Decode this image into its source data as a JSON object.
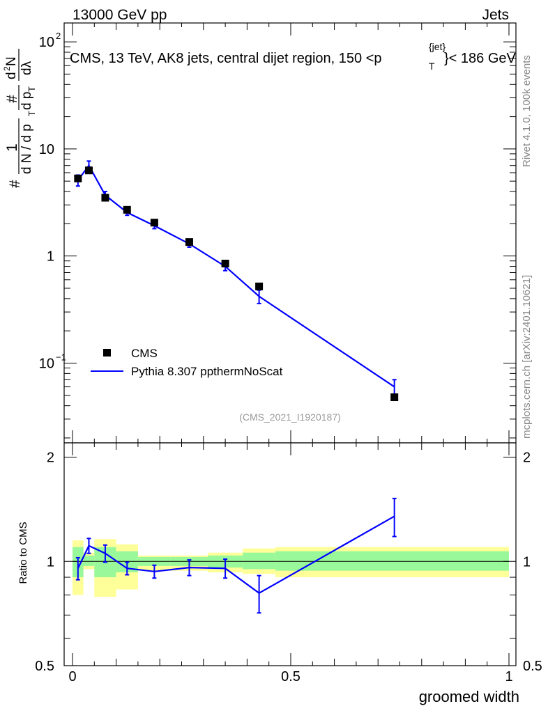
{
  "header": {
    "left": "13000 GeV pp",
    "right": "Jets"
  },
  "chart_data": {
    "type": "line",
    "title": "CMS, 13 TeV, AK8 jets, central dijet region, 150 <p",
    "title_sub": "T",
    "title_sup": "{jet}",
    "title_tail": "}< 186 GeV",
    "ylabel_top": "#  1 / dN/dp_T  # d²N / dp_T dλ",
    "y_prefix": "#",
    "y_frac_num": "1",
    "y_frac_den": "d N / d p",
    "y_frac_den_sub": "T",
    "y_frac2_num": "#",
    "y_frac2_den": "d p",
    "y_frac2_den_sub": "T",
    "y_frac3_num": "d",
    "y_frac3_num_sup": "2",
    "y_frac3_num_tail": "N",
    "y_frac3_den": "dλ",
    "xlabel": "groomed width",
    "ylabel_ratio": "Ratio to CMS",
    "analysis_tag": "(CMS_2021_I1920187)",
    "side_label_top": "Rivet 4.1.0,  100k events",
    "side_label_bottom": "mcplots.cern.ch [arXiv:2401.10621]",
    "legend": [
      {
        "label": "CMS",
        "style": "marker",
        "color": "#000000"
      },
      {
        "label": "Pythia 8.307 ppthermNoScat",
        "style": "line",
        "color": "#0000ff"
      }
    ],
    "xlim": [
      0,
      1
    ],
    "ylim_main": [
      0.018,
      150
    ],
    "ylim_ratio": [
      0.5,
      2.2
    ],
    "x_ticks": [
      {
        "value": 0,
        "label": "0"
      },
      {
        "value": 0.5,
        "label": "0.5"
      },
      {
        "value": 1,
        "label": "1"
      }
    ],
    "y_ticks_main": [
      {
        "value": 0.1,
        "base": "10",
        "exp": "−1"
      },
      {
        "value": 1,
        "base": "1",
        "exp": ""
      },
      {
        "value": 10,
        "base": "10",
        "exp": ""
      },
      {
        "value": 100,
        "base": "10",
        "exp": "2"
      }
    ],
    "y_ticks_ratio": [
      {
        "value": 0.5,
        "label": "0.5"
      },
      {
        "value": 1,
        "label": "1"
      },
      {
        "value": 2,
        "label": "2"
      }
    ],
    "cms": {
      "x": [
        0.0125,
        0.0375,
        0.075,
        0.125,
        0.1875,
        0.2675,
        0.35,
        0.4275,
        0.7375
      ],
      "y": [
        5.3,
        6.3,
        3.5,
        2.7,
        2.05,
        1.35,
        0.85,
        0.52,
        0.048
      ]
    },
    "pythia": {
      "x": [
        0.0125,
        0.0375,
        0.075,
        0.125,
        0.1875,
        0.2675,
        0.35,
        0.4275,
        0.7375
      ],
      "y": [
        5.1,
        7.0,
        3.7,
        2.55,
        1.92,
        1.3,
        0.8,
        0.42,
        0.06
      ],
      "yerr": [
        0.6,
        0.7,
        0.3,
        0.15,
        0.12,
        0.09,
        0.07,
        0.06,
        0.01
      ]
    },
    "ratio": {
      "x": [
        0.0125,
        0.0375,
        0.075,
        0.125,
        0.1875,
        0.2675,
        0.35,
        0.4275,
        0.7375
      ],
      "y": [
        0.955,
        1.11,
        1.055,
        0.955,
        0.935,
        0.96,
        0.955,
        0.81,
        1.35
      ],
      "yerr": [
        0.07,
        0.055,
        0.06,
        0.04,
        0.04,
        0.05,
        0.06,
        0.1,
        0.17
      ]
    },
    "bands": {
      "bin_edges": [
        0,
        0.025,
        0.05,
        0.1,
        0.15,
        0.225,
        0.31,
        0.39,
        0.465,
        1.0
      ],
      "inner_lo": [
        0.9,
        0.97,
        0.9,
        0.93,
        0.97,
        0.97,
        0.96,
        0.95,
        0.94
      ],
      "inner_hi": [
        1.1,
        1.04,
        1.1,
        1.07,
        1.03,
        1.03,
        1.04,
        1.06,
        1.07
      ],
      "outer_lo": [
        0.8,
        0.95,
        0.79,
        0.83,
        0.94,
        0.94,
        0.93,
        0.92,
        0.9
      ],
      "outer_hi": [
        1.15,
        1.06,
        1.16,
        1.12,
        1.04,
        1.04,
        1.06,
        1.09,
        1.1
      ],
      "inner_color": "#99f899",
      "outer_color": "#ffff99"
    },
    "colors": {
      "cms": "#000000",
      "pythia": "#0000ff",
      "tag": "#999999",
      "side": "#888888"
    }
  }
}
